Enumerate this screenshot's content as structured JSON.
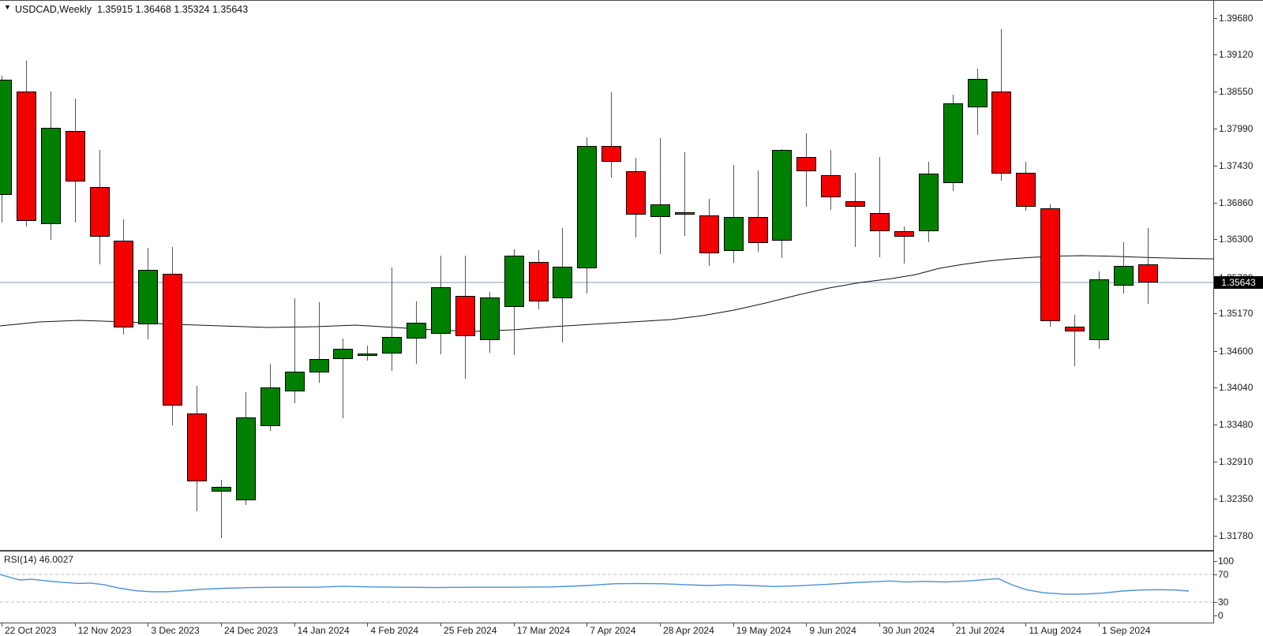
{
  "window": {
    "symbol_period": "USDCAD,Weekly",
    "ohlc_display": {
      "open": "1.35915",
      "high": "1.36468",
      "low": "1.35324",
      "close": "1.35643"
    }
  },
  "colors": {
    "up_candle": "#008000",
    "down_candle": "#f40000",
    "candle_border": "#000000",
    "wick": "#555555",
    "ma_line": "#111111",
    "current_price_line": "#7e99b8",
    "rsi_line": "#4a90d9",
    "rsi_dashed_level": "#bdbdbd",
    "axis_text": "#1b1b1b",
    "price_box_bg": "#000000",
    "price_box_text": "#ffffff"
  },
  "chart_data": {
    "type": "candlestick",
    "title": "USDCAD,Weekly",
    "symbol": "USDCAD",
    "timeframe": "Weekly",
    "grid": false,
    "price_axis": {
      "side": "right",
      "ticks": [
        "1.39680",
        "1.39120",
        "1.38550",
        "1.37990",
        "1.37430",
        "1.36860",
        "1.36300",
        "1.35720",
        "1.35170",
        "1.34600",
        "1.34040",
        "1.33480",
        "1.32910",
        "1.32350",
        "1.31780"
      ],
      "current_price": "1.35643",
      "range_top": 1.3994,
      "range_bottom": 1.3134
    },
    "time_axis": {
      "ticks": [
        "22 Oct 2023",
        "12 Nov 2023",
        "3 Dec 2023",
        "24 Dec 2023",
        "14 Jan 2024",
        "4 Feb 2024",
        "25 Feb 2024",
        "17 Mar 2024",
        "7 Apr 2024",
        "28 Apr 2024",
        "19 May 2024",
        "9 Jun 2024",
        "30 Jun 2024",
        "21 Jul 2024",
        "11 Aug 2024",
        "1 Sep 2024"
      ],
      "weeks_per_tick": 3
    },
    "candles": [
      {
        "date": "22 Oct 2023",
        "o": 1.3698,
        "h": 1.388,
        "l": 1.3656,
        "c": 1.3874
      },
      {
        "date": "29 Oct 2023",
        "o": 1.3855,
        "h": 1.3902,
        "l": 1.365,
        "c": 1.3658
      },
      {
        "date": "5 Nov 2023",
        "o": 1.3653,
        "h": 1.3856,
        "l": 1.3629,
        "c": 1.38
      },
      {
        "date": "12 Nov 2023",
        "o": 1.3795,
        "h": 1.3845,
        "l": 1.3656,
        "c": 1.3718
      },
      {
        "date": "19 Nov 2023",
        "o": 1.371,
        "h": 1.3766,
        "l": 1.3592,
        "c": 1.3634
      },
      {
        "date": "26 Nov 2023",
        "o": 1.3628,
        "h": 1.366,
        "l": 1.3485,
        "c": 1.3496
      },
      {
        "date": "3 Dec 2023",
        "o": 1.35,
        "h": 1.3617,
        "l": 1.3478,
        "c": 1.3584
      },
      {
        "date": "10 Dec 2023",
        "o": 1.3578,
        "h": 1.3619,
        "l": 1.3347,
        "c": 1.3376
      },
      {
        "date": "17 Dec 2023",
        "o": 1.3364,
        "h": 1.3407,
        "l": 1.3215,
        "c": 1.3261
      },
      {
        "date": "24 Dec 2023",
        "o": 1.3245,
        "h": 1.3263,
        "l": 1.3175,
        "c": 1.3253
      },
      {
        "date": "31 Dec 2023",
        "o": 1.3232,
        "h": 1.3397,
        "l": 1.3225,
        "c": 1.3358
      },
      {
        "date": "7 Jan 2024",
        "o": 1.3345,
        "h": 1.344,
        "l": 1.3338,
        "c": 1.3404
      },
      {
        "date": "14 Jan 2024",
        "o": 1.3398,
        "h": 1.354,
        "l": 1.338,
        "c": 1.3428
      },
      {
        "date": "21 Jan 2024",
        "o": 1.3427,
        "h": 1.3534,
        "l": 1.3412,
        "c": 1.3448
      },
      {
        "date": "28 Jan 2024",
        "o": 1.3447,
        "h": 1.3479,
        "l": 1.3357,
        "c": 1.3463
      },
      {
        "date": "4 Feb 2024",
        "o": 1.3454,
        "h": 1.3468,
        "l": 1.3445,
        "c": 1.3456
      },
      {
        "date": "11 Feb 2024",
        "o": 1.3456,
        "h": 1.3587,
        "l": 1.3429,
        "c": 1.3481
      },
      {
        "date": "18 Feb 2024",
        "o": 1.3479,
        "h": 1.3535,
        "l": 1.344,
        "c": 1.3503
      },
      {
        "date": "25 Feb 2024",
        "o": 1.3486,
        "h": 1.3605,
        "l": 1.3455,
        "c": 1.3557
      },
      {
        "date": "3 Mar 2024",
        "o": 1.3544,
        "h": 1.3605,
        "l": 1.3417,
        "c": 1.3483
      },
      {
        "date": "10 Mar 2024",
        "o": 1.3476,
        "h": 1.355,
        "l": 1.3457,
        "c": 1.3541
      },
      {
        "date": "17 Mar 2024",
        "o": 1.3527,
        "h": 1.3615,
        "l": 1.3454,
        "c": 1.3605
      },
      {
        "date": "24 Mar 2024",
        "o": 1.3595,
        "h": 1.3614,
        "l": 1.3523,
        "c": 1.3536
      },
      {
        "date": "31 Mar 2024",
        "o": 1.354,
        "h": 1.3647,
        "l": 1.3473,
        "c": 1.3588
      },
      {
        "date": "7 Apr 2024",
        "o": 1.3586,
        "h": 1.3786,
        "l": 1.3547,
        "c": 1.3773
      },
      {
        "date": "14 Apr 2024",
        "o": 1.3773,
        "h": 1.3854,
        "l": 1.3724,
        "c": 1.3749
      },
      {
        "date": "21 Apr 2024",
        "o": 1.3734,
        "h": 1.3754,
        "l": 1.3633,
        "c": 1.3668
      },
      {
        "date": "28 Apr 2024",
        "o": 1.3664,
        "h": 1.3785,
        "l": 1.3608,
        "c": 1.3684
      },
      {
        "date": "5 May 2024",
        "o": 1.3672,
        "h": 1.3763,
        "l": 1.3635,
        "c": 1.367
      },
      {
        "date": "12 May 2024",
        "o": 1.3666,
        "h": 1.3692,
        "l": 1.3589,
        "c": 1.3609
      },
      {
        "date": "19 May 2024",
        "o": 1.3612,
        "h": 1.3744,
        "l": 1.3594,
        "c": 1.3664
      },
      {
        "date": "26 May 2024",
        "o": 1.3664,
        "h": 1.3735,
        "l": 1.3611,
        "c": 1.3625
      },
      {
        "date": "2 Jun 2024",
        "o": 1.3628,
        "h": 1.3768,
        "l": 1.3601,
        "c": 1.3766
      },
      {
        "date": "9 Jun 2024",
        "o": 1.3756,
        "h": 1.3792,
        "l": 1.368,
        "c": 1.3734
      },
      {
        "date": "16 Jun 2024",
        "o": 1.3728,
        "h": 1.3766,
        "l": 1.3675,
        "c": 1.3694
      },
      {
        "date": "23 Jun 2024",
        "o": 1.3688,
        "h": 1.3732,
        "l": 1.3619,
        "c": 1.368
      },
      {
        "date": "30 Jun 2024",
        "o": 1.367,
        "h": 1.3756,
        "l": 1.3603,
        "c": 1.3642
      },
      {
        "date": "7 Jul 2024",
        "o": 1.3642,
        "h": 1.365,
        "l": 1.3593,
        "c": 1.3634
      },
      {
        "date": "14 Jul 2024",
        "o": 1.3642,
        "h": 1.3748,
        "l": 1.3626,
        "c": 1.373
      },
      {
        "date": "21 Jul 2024",
        "o": 1.3716,
        "h": 1.3851,
        "l": 1.3704,
        "c": 1.3837
      },
      {
        "date": "28 Jul 2024",
        "o": 1.3831,
        "h": 1.3891,
        "l": 1.3789,
        "c": 1.3875
      },
      {
        "date": "4 Aug 2024",
        "o": 1.3856,
        "h": 1.395,
        "l": 1.372,
        "c": 1.373
      },
      {
        "date": "11 Aug 2024",
        "o": 1.3732,
        "h": 1.3748,
        "l": 1.3674,
        "c": 1.368
      },
      {
        "date": "18 Aug 2024",
        "o": 1.3678,
        "h": 1.3684,
        "l": 1.3497,
        "c": 1.3505
      },
      {
        "date": "25 Aug 2024",
        "o": 1.3497,
        "h": 1.3515,
        "l": 1.3437,
        "c": 1.349
      },
      {
        "date": "1 Sep 2024",
        "o": 1.3476,
        "h": 1.3581,
        "l": 1.3463,
        "c": 1.3569
      },
      {
        "date": "8 Sep 2024",
        "o": 1.3559,
        "h": 1.3626,
        "l": 1.3547,
        "c": 1.3589
      },
      {
        "date": "15 Sep 2024",
        "o": 1.35915,
        "h": 1.36468,
        "l": 1.35324,
        "c": 1.35643
      }
    ],
    "ma_line": {
      "name": "moving-average",
      "points": [
        [
          0,
          1.34981
        ],
        [
          50,
          1.35041
        ],
        [
          100,
          1.35065
        ],
        [
          160,
          1.35041
        ],
        [
          220,
          1.35005
        ],
        [
          280,
          1.34981
        ],
        [
          340,
          1.34957
        ],
        [
          400,
          1.34969
        ],
        [
          450,
          1.34993
        ],
        [
          500,
          1.34957
        ],
        [
          550,
          1.34921
        ],
        [
          600,
          1.34897
        ],
        [
          650,
          1.34921
        ],
        [
          700,
          1.34969
        ],
        [
          750,
          1.35005
        ],
        [
          800,
          1.35041
        ],
        [
          850,
          1.35077
        ],
        [
          890,
          1.35137
        ],
        [
          930,
          1.35222
        ],
        [
          970,
          1.3533
        ],
        [
          1010,
          1.3545
        ],
        [
          1050,
          1.35559
        ],
        [
          1090,
          1.35643
        ],
        [
          1130,
          1.35703
        ],
        [
          1160,
          1.35763
        ],
        [
          1190,
          1.3586
        ],
        [
          1220,
          1.3592
        ],
        [
          1250,
          1.35968
        ],
        [
          1280,
          1.36004
        ],
        [
          1310,
          1.36028
        ],
        [
          1340,
          1.36046
        ],
        [
          1370,
          1.36052
        ],
        [
          1400,
          1.36046
        ],
        [
          1430,
          1.36034
        ],
        [
          1460,
          1.36022
        ],
        [
          1500,
          1.3601
        ],
        [
          1537,
          1.36004
        ]
      ]
    },
    "rsi": {
      "label": "RSI(14)",
      "value": "46.0027",
      "scale_labels": [
        "100",
        "70",
        "30",
        "0"
      ],
      "dashed_levels": [
        70,
        30
      ],
      "points": [
        [
          0,
          70
        ],
        [
          12,
          66
        ],
        [
          25,
          62
        ],
        [
          40,
          63
        ],
        [
          60,
          60.5
        ],
        [
          80,
          58.5
        ],
        [
          100,
          57
        ],
        [
          115,
          57.5
        ],
        [
          132,
          55
        ],
        [
          152,
          50
        ],
        [
          172,
          46.5
        ],
        [
          192,
          45
        ],
        [
          212,
          45
        ],
        [
          232,
          46.5
        ],
        [
          256,
          48.5
        ],
        [
          286,
          50
        ],
        [
          320,
          51
        ],
        [
          360,
          51.5
        ],
        [
          400,
          51.5
        ],
        [
          435,
          53
        ],
        [
          470,
          52
        ],
        [
          510,
          51.5
        ],
        [
          550,
          51
        ],
        [
          600,
          51.5
        ],
        [
          650,
          51.5
        ],
        [
          700,
          52
        ],
        [
          745,
          54
        ],
        [
          778,
          56.5
        ],
        [
          810,
          57
        ],
        [
          840,
          56.5
        ],
        [
          870,
          55
        ],
        [
          898,
          54
        ],
        [
          924,
          55
        ],
        [
          950,
          54
        ],
        [
          980,
          52.5
        ],
        [
          1010,
          53.5
        ],
        [
          1045,
          55.5
        ],
        [
          1080,
          58
        ],
        [
          1108,
          59.5
        ],
        [
          1128,
          60.5
        ],
        [
          1148,
          59
        ],
        [
          1172,
          60
        ],
        [
          1198,
          59
        ],
        [
          1225,
          60.5
        ],
        [
          1248,
          62.5
        ],
        [
          1265,
          64
        ],
        [
          1282,
          55
        ],
        [
          1300,
          48
        ],
        [
          1322,
          43.5
        ],
        [
          1348,
          41.5
        ],
        [
          1372,
          41.5
        ],
        [
          1398,
          43
        ],
        [
          1422,
          46
        ],
        [
          1445,
          47.5
        ],
        [
          1468,
          48
        ],
        [
          1488,
          47.5
        ],
        [
          1506,
          46
        ]
      ]
    }
  }
}
